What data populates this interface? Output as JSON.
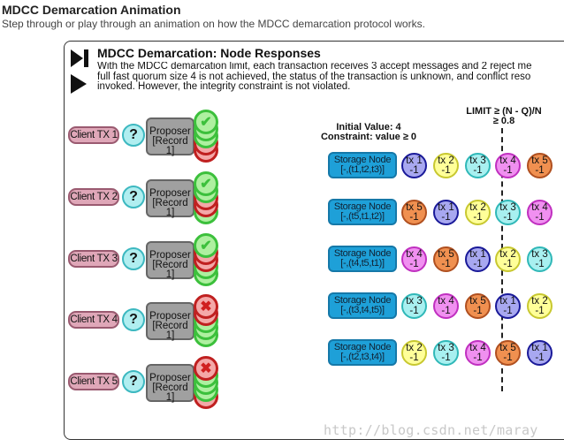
{
  "header": {
    "title": "MDCC Demarcation Animation",
    "subtitle": "Step through or play through an animation on how the MDCC demarcation protocol works."
  },
  "panel": {
    "title": "MDCC Demarcation: Node Responses",
    "description": [
      "With the MDCC demarcation limit, each transaction receives 3 accept messages and 2 reject me",
      "full fast quorum size 4 is not achieved, the status of the transaction is unknown, and conflict reso",
      "invoked. However, the integrity constraint is not violated."
    ],
    "controls": {
      "step": "step-forward-icon",
      "play": "play-icon"
    }
  },
  "clients": [
    {
      "label": "Client TX 1",
      "status": "?",
      "proposer": [
        "Proposer",
        "[Record 1]"
      ],
      "votes": [
        "accept",
        "accept",
        "accept",
        "reject",
        "reject"
      ]
    },
    {
      "label": "Client TX 2",
      "status": "?",
      "proposer": [
        "Proposer",
        "[Record 1]"
      ],
      "votes": [
        "accept",
        "accept",
        "reject",
        "reject",
        "accept"
      ]
    },
    {
      "label": "Client TX 3",
      "status": "?",
      "proposer": [
        "Proposer",
        "[Record 1]"
      ],
      "votes": [
        "accept",
        "reject",
        "reject",
        "accept",
        "accept"
      ]
    },
    {
      "label": "Client TX 4",
      "status": "?",
      "proposer": [
        "Proposer",
        "[Record 1]"
      ],
      "votes": [
        "reject",
        "reject",
        "accept",
        "accept",
        "accept"
      ]
    },
    {
      "label": "Client TX 5",
      "status": "?",
      "proposer": [
        "Proposer",
        "[Record 1]"
      ],
      "votes": [
        "reject",
        "accept",
        "accept",
        "accept",
        "reject"
      ]
    }
  ],
  "info": {
    "initial_value": "Initial Value: 4",
    "constraint": "Constraint: value ≥ 0",
    "limit_line1": "LIMIT ≥ (N - Q)/N",
    "limit_line2": "≥ 0.8"
  },
  "tx_colors": {
    "1": {
      "fill": "#a8a8f0",
      "border": "#1a1a99"
    },
    "2": {
      "fill": "#ffff99",
      "border": "#c8c830"
    },
    "3": {
      "fill": "#a8f0f0",
      "border": "#30b8b8"
    },
    "4": {
      "fill": "#f090f0",
      "border": "#c030c0"
    },
    "5": {
      "fill": "#f09050",
      "border": "#b05020"
    }
  },
  "storage_nodes": [
    {
      "label": "Storage Node",
      "order": "[-,(t1,t2,t3)]",
      "txs": [
        {
          "name": "tx 1",
          "value": "-1",
          "id": "1"
        },
        {
          "name": "tx 2",
          "value": "-1",
          "id": "2"
        },
        {
          "name": "tx 3",
          "value": "-1",
          "id": "3"
        },
        {
          "name": "tx 4",
          "value": "-1",
          "id": "4"
        },
        {
          "name": "tx 5",
          "value": "-1",
          "id": "5"
        }
      ]
    },
    {
      "label": "Storage Node",
      "order": "[-,(t5,t1,t2)]",
      "txs": [
        {
          "name": "tx 5",
          "value": "-1",
          "id": "5"
        },
        {
          "name": "tx 1",
          "value": "-1",
          "id": "1"
        },
        {
          "name": "tx 2",
          "value": "-1",
          "id": "2"
        },
        {
          "name": "tx 3",
          "value": "-1",
          "id": "3"
        },
        {
          "name": "tx 4",
          "value": "-1",
          "id": "4"
        }
      ]
    },
    {
      "label": "Storage Node",
      "order": "[-,(t4,t5,t1)]",
      "txs": [
        {
          "name": "tx 4",
          "value": "-1",
          "id": "4"
        },
        {
          "name": "tx 5",
          "value": "-1",
          "id": "5"
        },
        {
          "name": "tx 1",
          "value": "-1",
          "id": "1"
        },
        {
          "name": "tx 2",
          "value": "-1",
          "id": "2"
        },
        {
          "name": "tx 3",
          "value": "-1",
          "id": "3"
        }
      ]
    },
    {
      "label": "Storage Node",
      "order": "[-,(t3,t4,t5)]",
      "txs": [
        {
          "name": "tx 3",
          "value": "-1",
          "id": "3"
        },
        {
          "name": "tx 4",
          "value": "-1",
          "id": "4"
        },
        {
          "name": "tx 5",
          "value": "-1",
          "id": "5"
        },
        {
          "name": "tx 1",
          "value": "-1",
          "id": "1"
        },
        {
          "name": "tx 2",
          "value": "-1",
          "id": "2"
        }
      ]
    },
    {
      "label": "Storage Node",
      "order": "[-,(t2,t3,t4)]",
      "txs": [
        {
          "name": "tx 2",
          "value": "-1",
          "id": "2"
        },
        {
          "name": "tx 3",
          "value": "-1",
          "id": "3"
        },
        {
          "name": "tx 4",
          "value": "-1",
          "id": "4"
        },
        {
          "name": "tx 5",
          "value": "-1",
          "id": "5"
        },
        {
          "name": "tx 1",
          "value": "-1",
          "id": "1"
        }
      ]
    }
  ],
  "watermark": "http://blog.csdn.net/maray"
}
